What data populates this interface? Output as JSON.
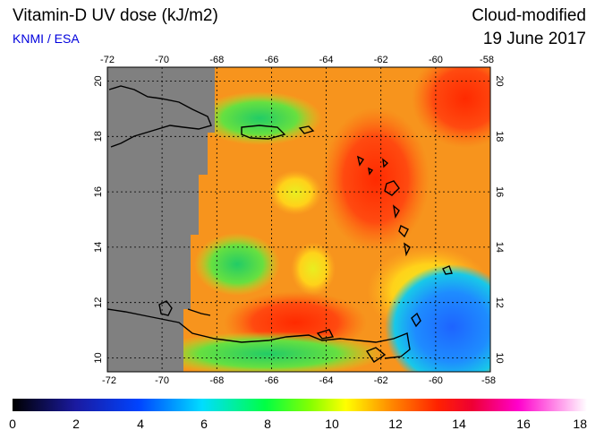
{
  "header": {
    "title": "Vitamin-D UV dose (kJ/m2)",
    "organization": "KNMI / ESA",
    "mode": "Cloud-modified",
    "date": "19 June 2017"
  },
  "map": {
    "longitude_labels": [
      "-72",
      "-70",
      "-68",
      "-66",
      "-64",
      "-62",
      "-60",
      "-58"
    ],
    "latitude_labels": [
      "10",
      "12",
      "14",
      "16",
      "18",
      "20"
    ],
    "lon_range": [
      -72,
      -58
    ],
    "lat_range": [
      9.5,
      20.5
    ]
  },
  "colorbar": {
    "tick_labels": [
      "0",
      "2",
      "4",
      "6",
      "8",
      "10",
      "12",
      "14",
      "16",
      "18"
    ],
    "range": [
      0,
      18
    ]
  },
  "colors": {
    "no_data": "#808080",
    "background_field": "#f7941d",
    "coastline": "#000000",
    "grid": "#000000"
  }
}
